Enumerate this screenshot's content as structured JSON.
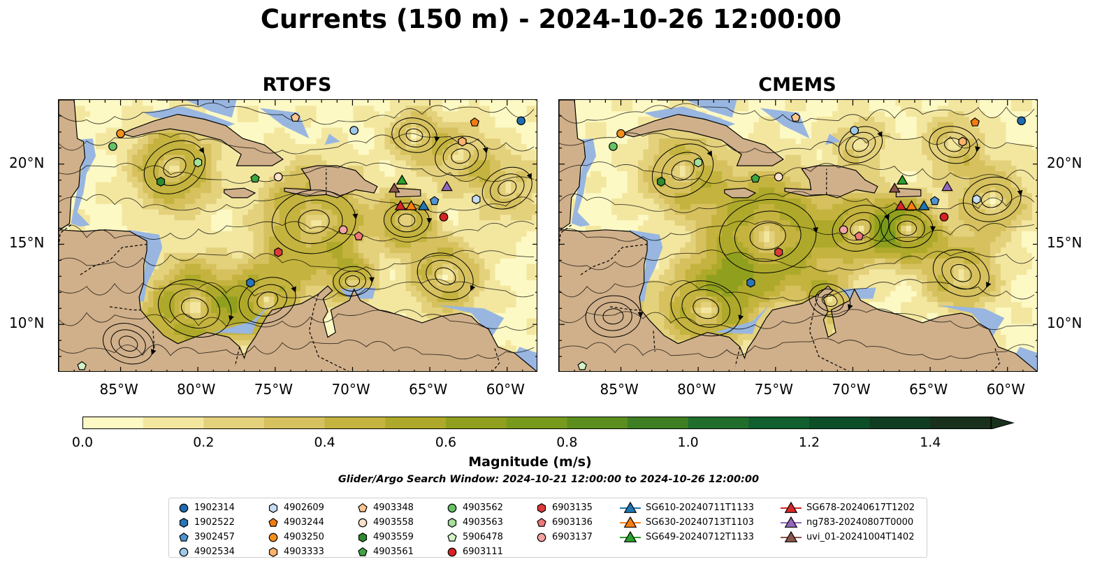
{
  "title": "Currents (150 m) - 2024-10-26 12:00:00",
  "panels": [
    {
      "title": "RTOFS"
    },
    {
      "title": "CMEMS"
    }
  ],
  "axes": {
    "lon_ticks": [
      "85°W",
      "80°W",
      "75°W",
      "70°W",
      "65°W",
      "60°W"
    ],
    "lat_ticks": [
      "20°N",
      "15°N",
      "10°N"
    ],
    "lon_range": [
      -89,
      -58
    ],
    "lat_range": [
      7,
      24
    ]
  },
  "colorbar": {
    "label": "Magnitude (m/s)",
    "ticks": [
      "0.0",
      "0.2",
      "0.4",
      "0.6",
      "0.8",
      "1.0",
      "1.2",
      "1.4"
    ],
    "range": [
      0,
      1.5
    ],
    "extend": "max",
    "colors": [
      "#fdf9c4",
      "#f3e7a0",
      "#e4d17c",
      "#d6c15e",
      "#c4b33e",
      "#aea92a",
      "#90a01e",
      "#789a1c",
      "#5c8e1e",
      "#3d7f22",
      "#216e2c",
      "#115f2e",
      "#0c4e28",
      "#103d22",
      "#18301c"
    ]
  },
  "search_window": "Glider/Argo Search Window: 2024-10-21 12:00:00 to 2024-10-26 12:00:00",
  "colors": {
    "land": "#d0b08a",
    "water": "#98b6e0",
    "field_low": "#f5eaa8"
  },
  "legend": {
    "columns": [
      [
        {
          "label": "1902314",
          "marker": "circle",
          "color": "#1f6cb0"
        },
        {
          "label": "1902522",
          "marker": "hexagon",
          "color": "#2a74b8"
        },
        {
          "label": "3902457",
          "marker": "pentagon",
          "color": "#4f93cf"
        },
        {
          "label": "4902534",
          "marker": "circle",
          "color": "#9ecae8"
        }
      ],
      [
        {
          "label": "4902609",
          "marker": "hexagon",
          "color": "#c6dcf2"
        },
        {
          "label": "4903244",
          "marker": "pentagon",
          "color": "#f07d10"
        },
        {
          "label": "4903250",
          "marker": "circle",
          "color": "#f5901f"
        },
        {
          "label": "4903333",
          "marker": "hexagon",
          "color": "#fdb36b"
        }
      ],
      [
        {
          "label": "4903348",
          "marker": "pentagon",
          "color": "#fdc78f"
        },
        {
          "label": "4903558",
          "marker": "circle",
          "color": "#fde0c6"
        },
        {
          "label": "4903559",
          "marker": "hexagon",
          "color": "#2e8b2e"
        },
        {
          "label": "4903561",
          "marker": "pentagon",
          "color": "#3fa63f"
        }
      ],
      [
        {
          "label": "4903562",
          "marker": "circle",
          "color": "#66c266"
        },
        {
          "label": "4903563",
          "marker": "hexagon",
          "color": "#a6df9a"
        },
        {
          "label": "5906478",
          "marker": "pentagon",
          "color": "#d4f2c8"
        },
        {
          "label": "6903111",
          "marker": "circle",
          "color": "#d62222"
        }
      ],
      [
        {
          "label": "6903135",
          "marker": "hexagon",
          "color": "#dc3b3b"
        },
        {
          "label": "6903136",
          "marker": "pentagon",
          "color": "#f07878"
        },
        {
          "label": "6903137",
          "marker": "circle",
          "color": "#f5a3a3"
        }
      ],
      [
        {
          "label": "SG610-20240711T1133",
          "marker": "triangle-line",
          "color": "#1f77b4"
        },
        {
          "label": "SG630-20240713T1103",
          "marker": "triangle-line",
          "color": "#ff7f0e"
        },
        {
          "label": "SG649-20240712T1133",
          "marker": "triangle-line",
          "color": "#2ca02c"
        }
      ],
      [
        {
          "label": "SG678-20240617T1202",
          "marker": "triangle-line",
          "color": "#d62728"
        },
        {
          "label": "ng783-20240807T0000",
          "marker": "triangle-line",
          "color": "#9467bd"
        },
        {
          "label": "uvi_01-20241004T1402",
          "marker": "triangle-line",
          "color": "#8c564b"
        }
      ]
    ]
  },
  "markers": [
    {
      "id": "1902314",
      "lon": -59.1,
      "lat": 22.7
    },
    {
      "id": "1902522",
      "lon": -76.6,
      "lat": 12.6
    },
    {
      "id": "3902457",
      "lon": -64.7,
      "lat": 17.7
    },
    {
      "id": "4902534",
      "lon": -69.9,
      "lat": 22.1
    },
    {
      "id": "4902609",
      "lon": -62.0,
      "lat": 17.8
    },
    {
      "id": "4903244",
      "lon": -62.1,
      "lat": 22.6
    },
    {
      "id": "4903250",
      "lon": -85.0,
      "lat": 21.9
    },
    {
      "id": "4903333",
      "lon": -62.9,
      "lat": 21.4
    },
    {
      "id": "4903348",
      "lon": -73.7,
      "lat": 22.9
    },
    {
      "id": "4903558",
      "lon": -74.8,
      "lat": 19.2
    },
    {
      "id": "4903559",
      "lon": -82.4,
      "lat": 18.9
    },
    {
      "id": "4903561",
      "lon": -76.3,
      "lat": 19.1
    },
    {
      "id": "4903562",
      "lon": -85.5,
      "lat": 21.1
    },
    {
      "id": "4903563",
      "lon": -80.0,
      "lat": 20.1
    },
    {
      "id": "5906478",
      "lon": -87.5,
      "lat": 7.4
    },
    {
      "id": "6903111",
      "lon": -64.1,
      "lat": 16.7
    },
    {
      "id": "6903135",
      "lon": -74.8,
      "lat": 14.5
    },
    {
      "id": "6903136",
      "lon": -69.6,
      "lat": 15.5
    },
    {
      "id": "6903137",
      "lon": -70.6,
      "lat": 15.9
    },
    {
      "id": "SG610-20240711T1133",
      "lon": -65.4,
      "lat": 17.4
    },
    {
      "id": "SG630-20240713T1103",
      "lon": -66.2,
      "lat": 17.4
    },
    {
      "id": "SG649-20240712T1133",
      "lon": -66.8,
      "lat": 19.0
    },
    {
      "id": "SG678-20240617T1202",
      "lon": -66.9,
      "lat": 17.4
    },
    {
      "id": "ng783-20240807T0000",
      "lon": -63.9,
      "lat": 18.6
    },
    {
      "id": "uvi_01-20241004T1402",
      "lon": -67.3,
      "lat": 18.5
    }
  ]
}
